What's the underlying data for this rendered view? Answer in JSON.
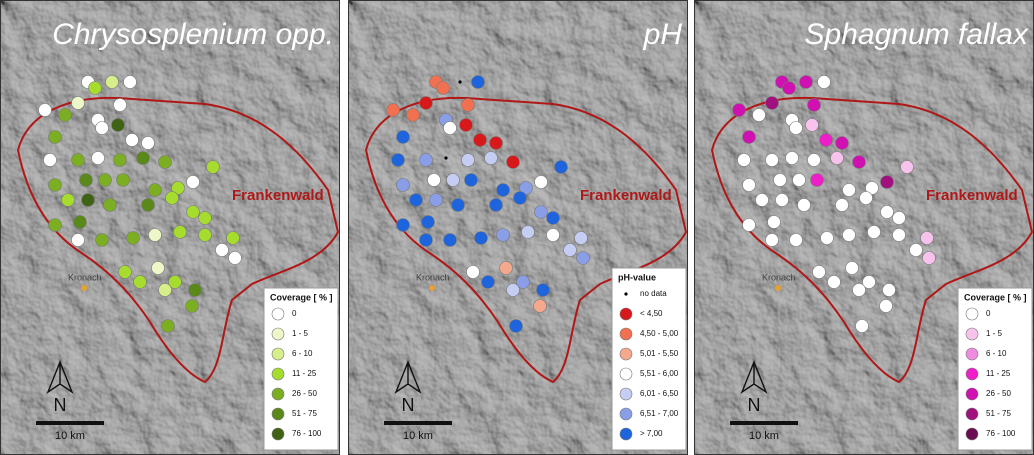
{
  "panels": [
    {
      "title": "Chrysosplenium opp.",
      "legend": {
        "title": "Coverage [ % ]",
        "items": [
          {
            "label": "0",
            "color": "#ffffff"
          },
          {
            "label": "1 - 5",
            "color": "#eef7c8"
          },
          {
            "label": "6 - 10",
            "color": "#d6ef8a"
          },
          {
            "label": "11 - 25",
            "color": "#a6dc2e"
          },
          {
            "label": "26 - 50",
            "color": "#7cae22"
          },
          {
            "label": "51 - 75",
            "color": "#5a891a"
          },
          {
            "label": "76 - 100",
            "color": "#3f6312"
          }
        ]
      }
    },
    {
      "title": "pH",
      "legend": {
        "title": "pH-value",
        "items": [
          {
            "label": "no data",
            "color": "#000000",
            "marker": "point"
          },
          {
            "label": "< 4,50",
            "color": "#d7191c"
          },
          {
            "label": "4,50 - 5,00",
            "color": "#f07050"
          },
          {
            "label": "5,01 - 5,50",
            "color": "#f4a88c"
          },
          {
            "label": "5,51 - 6,00",
            "color": "#ffffff"
          },
          {
            "label": "6,01 - 6,50",
            "color": "#c5cdf2"
          },
          {
            "label": "6,51 - 7,00",
            "color": "#8a9ee8"
          },
          {
            "label": "> 7,00",
            "color": "#1e64dc"
          }
        ]
      }
    },
    {
      "title": "Sphagnum fallax",
      "legend": {
        "title": "Coverage [ % ]",
        "items": [
          {
            "label": "0",
            "color": "#ffffff"
          },
          {
            "label": "1 - 5",
            "color": "#f7c2ec"
          },
          {
            "label": "6 - 10",
            "color": "#f08ce0"
          },
          {
            "label": "11 - 25",
            "color": "#ee1fc8"
          },
          {
            "label": "26 - 50",
            "color": "#d010b0"
          },
          {
            "label": "51 - 75",
            "color": "#a0107f"
          },
          {
            "label": "76 - 100",
            "color": "#6a0a50"
          }
        ]
      }
    }
  ],
  "region_label": "Frankenwald",
  "town_label": "Kronach",
  "north_label": "N",
  "scale_label": "10 km"
}
